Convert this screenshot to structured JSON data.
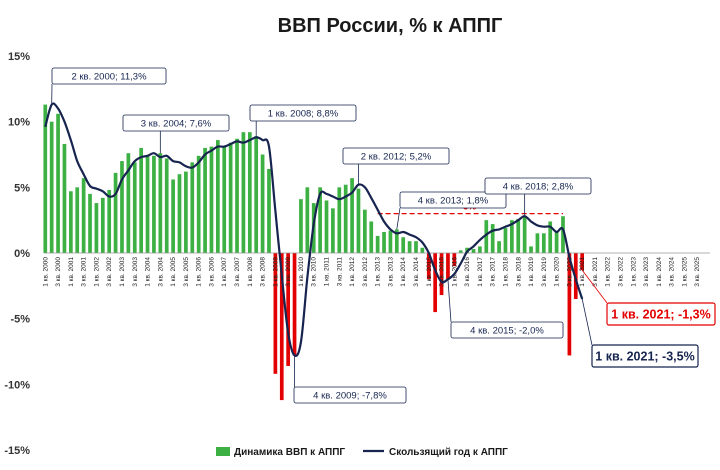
{
  "chart_data": {
    "type": "bar",
    "title": "ВВП России, % к АППГ",
    "ylim": [
      -15,
      15
    ],
    "yticks": [
      "15%",
      "10%",
      "5%",
      "0%",
      "-5%",
      "-10%",
      "-15%"
    ],
    "grid": false,
    "legend_position": "bottom",
    "colors": {
      "positive_bar": "#3cb043",
      "negative_bar": "#e30000",
      "line": "#16244f",
      "reference": "#e30000"
    },
    "categories": [
      "1 кв. 2000",
      "3 кв. 2000",
      "1 кв. 2001",
      "3 кв. 2001",
      "1 кв. 2002",
      "3 кв. 2002",
      "1 кв. 2003",
      "3 кв. 2003",
      "1 кв. 2004",
      "3 кв. 2004",
      "1 кв. 2005",
      "3 кв. 2005",
      "1 кв. 2006",
      "3 кв. 2006",
      "1 кв. 2007",
      "3 кв. 2007",
      "1 кв. 2008",
      "3 кв. 2008",
      "1 кв. 2009",
      "3 кв. 2009",
      "1 кв. 2010",
      "3 кв. 2010",
      "1 кв. 2011",
      "3 кв. 2011",
      "1 кв. 2012",
      "3 кв. 2012",
      "1 кв. 2013",
      "3 кв. 2013",
      "1 кв. 2014",
      "3 кв. 2014",
      "1 кв. 2015",
      "3 кв. 2015",
      "1 кв. 2016",
      "3 кв. 2016",
      "1 кв. 2017",
      "3 кв. 2017",
      "1 кв. 2018",
      "3 кв. 2018",
      "1 кв. 2019",
      "3 кв. 2019",
      "1 кв. 2020",
      "3 кв. 2020",
      "1 кв. 2021",
      "3 кв. 2021",
      "1 кв. 2022",
      "3 кв. 2022",
      "1 кв. 2023",
      "3 кв. 2023",
      "1 кв. 2024",
      "3 кв. 2024",
      "1 кв. 2025",
      "3 кв. 2025"
    ],
    "series": [
      {
        "name": "Динамика ВВП к АППГ",
        "kind": "bar",
        "x": [
          2000.0,
          2000.25,
          2000.5,
          2000.75,
          2001.0,
          2001.25,
          2001.5,
          2001.75,
          2002.0,
          2002.25,
          2002.5,
          2002.75,
          2003.0,
          2003.25,
          2003.5,
          2003.75,
          2004.0,
          2004.25,
          2004.5,
          2004.75,
          2005.0,
          2005.25,
          2005.5,
          2005.75,
          2006.0,
          2006.25,
          2006.5,
          2006.75,
          2007.0,
          2007.25,
          2007.5,
          2007.75,
          2008.0,
          2008.25,
          2008.5,
          2008.75,
          2009.0,
          2009.25,
          2009.5,
          2009.75,
          2010.0,
          2010.25,
          2010.5,
          2010.75,
          2011.0,
          2011.25,
          2011.5,
          2011.75,
          2012.0,
          2012.25,
          2012.5,
          2012.75,
          2013.0,
          2013.25,
          2013.5,
          2013.75,
          2014.0,
          2014.25,
          2014.5,
          2014.75,
          2015.0,
          2015.25,
          2015.5,
          2015.75,
          2016.0,
          2016.25,
          2016.5,
          2016.75,
          2017.0,
          2017.25,
          2017.5,
          2017.75,
          2018.0,
          2018.25,
          2018.5,
          2018.75,
          2019.0,
          2019.25,
          2019.5,
          2019.75,
          2020.0,
          2020.25,
          2020.5,
          2020.75,
          2021.0
        ],
        "values": [
          11.3,
          10.0,
          10.6,
          8.3,
          4.7,
          5.0,
          5.7,
          4.5,
          3.8,
          4.2,
          4.8,
          6.1,
          7.0,
          7.6,
          6.9,
          8.0,
          7.4,
          7.4,
          7.6,
          7.2,
          5.6,
          6.0,
          6.2,
          6.9,
          7.4,
          8.0,
          8.1,
          8.6,
          8.1,
          8.4,
          8.7,
          9.2,
          9.2,
          8.9,
          7.5,
          6.4,
          -9.2,
          -11.2,
          -8.6,
          -7.8,
          4.1,
          5.0,
          3.8,
          5.0,
          4.0,
          3.4,
          5.0,
          5.2,
          5.7,
          4.9,
          3.3,
          2.4,
          1.3,
          1.6,
          1.7,
          1.8,
          1.2,
          0.9,
          0.9,
          0.4,
          -2.0,
          -4.5,
          -3.2,
          -2.0,
          -1.0,
          0.2,
          0.4,
          0.3,
          0.5,
          2.5,
          2.2,
          0.9,
          1.9,
          2.5,
          2.6,
          2.8,
          0.5,
          1.5,
          1.5,
          2.4,
          1.6,
          2.8,
          -7.8,
          -3.5,
          -1.3
        ]
      },
      {
        "name": "Скользящий год к АППГ",
        "kind": "line",
        "x": [
          2000.0,
          2000.25,
          2000.5,
          2000.75,
          2001.0,
          2001.25,
          2001.5,
          2001.75,
          2002.0,
          2002.25,
          2002.5,
          2002.75,
          2003.0,
          2003.25,
          2003.5,
          2003.75,
          2004.0,
          2004.25,
          2004.5,
          2004.75,
          2005.0,
          2005.25,
          2005.5,
          2005.75,
          2006.0,
          2006.25,
          2006.5,
          2006.75,
          2007.0,
          2007.25,
          2007.5,
          2007.75,
          2008.0,
          2008.25,
          2008.5,
          2008.75,
          2009.0,
          2009.25,
          2009.5,
          2009.75,
          2010.0,
          2010.25,
          2010.5,
          2010.75,
          2011.0,
          2011.25,
          2011.5,
          2011.75,
          2012.0,
          2012.25,
          2012.5,
          2012.75,
          2013.0,
          2013.25,
          2013.5,
          2013.75,
          2014.0,
          2014.25,
          2014.5,
          2014.75,
          2015.0,
          2015.25,
          2015.5,
          2015.75,
          2016.0,
          2016.25,
          2016.5,
          2016.75,
          2017.0,
          2017.25,
          2017.5,
          2017.75,
          2018.0,
          2018.25,
          2018.5,
          2018.75,
          2019.0,
          2019.25,
          2019.5,
          2019.75,
          2020.0,
          2020.25,
          2020.5,
          2020.75,
          2021.0
        ],
        "values": [
          9.6,
          11.3,
          11.0,
          10.0,
          8.6,
          7.0,
          6.0,
          5.1,
          4.9,
          4.7,
          4.3,
          4.5,
          5.6,
          6.3,
          7.0,
          7.3,
          7.4,
          7.6,
          7.3,
          7.4,
          7.0,
          6.9,
          6.6,
          6.5,
          6.9,
          7.5,
          7.8,
          8.1,
          8.1,
          8.3,
          8.5,
          8.4,
          8.6,
          8.8,
          8.6,
          8.1,
          3.2,
          -1.7,
          -6.1,
          -7.8,
          -6.8,
          -1.9,
          2.2,
          4.5,
          4.5,
          4.3,
          4.1,
          4.3,
          4.6,
          5.2,
          5.0,
          4.2,
          3.3,
          2.4,
          1.8,
          1.5,
          1.6,
          1.4,
          1.2,
          0.8,
          0.0,
          -1.3,
          -2.2,
          -2.0,
          -1.6,
          -0.8,
          0.1,
          0.5,
          1.0,
          1.4,
          1.7,
          1.8,
          2.0,
          2.2,
          2.5,
          2.8,
          2.4,
          2.1,
          2.0,
          2.0,
          1.6,
          1.8,
          -0.3,
          -2.0,
          -3.5
        ]
      }
    ],
    "reference_line": {
      "y": 3,
      "label": "3%",
      "x_range": [
        2013.0,
        2020.25
      ]
    },
    "annotations": [
      {
        "text": "2 кв. 2000; 11,3%",
        "x": 2000.25,
        "y": 11.3,
        "style": "normal"
      },
      {
        "text": "3 кв. 2004; 7,6%",
        "x": 2004.5,
        "y": 7.6,
        "style": "normal"
      },
      {
        "text": "1 кв. 2008; 8,8%",
        "x": 2008.25,
        "y": 8.8,
        "style": "normal"
      },
      {
        "text": "2 кв. 2012; 5,2%",
        "x": 2012.25,
        "y": 5.2,
        "style": "normal"
      },
      {
        "text": "4 кв. 2013; 1,8%",
        "x": 2013.75,
        "y": 1.8,
        "style": "normal"
      },
      {
        "text": "4 кв. 2018; 2,8%",
        "x": 2018.75,
        "y": 2.8,
        "style": "normal"
      },
      {
        "text": "4 кв. 2009; -7,8%",
        "x": 2009.75,
        "y": -7.8,
        "style": "normal"
      },
      {
        "text": "4 кв. 2015; -2,0%",
        "x": 2015.75,
        "y": -2.0,
        "style": "normal"
      },
      {
        "text": "1 кв. 2021; -1,3%",
        "x": 2021.0,
        "y": -1.3,
        "style": "red"
      },
      {
        "text": "1 кв. 2021; -3,5%",
        "x": 2021.0,
        "y": -3.5,
        "style": "navy"
      }
    ]
  }
}
